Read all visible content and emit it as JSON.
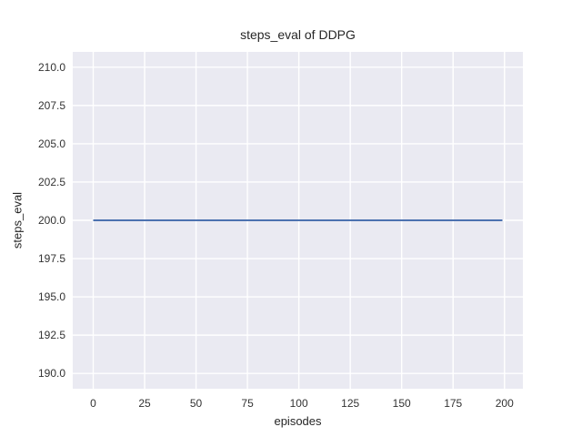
{
  "chart_data": {
    "type": "line",
    "title": "steps_eval of DDPG",
    "xlabel": "episodes",
    "ylabel": "steps_eval",
    "xlim": [
      -9.95,
      208.95
    ],
    "ylim": [
      189.0,
      211.0
    ],
    "xticks": [
      0,
      25,
      50,
      75,
      100,
      125,
      150,
      175,
      200
    ],
    "xtick_labels": [
      "0",
      "25",
      "50",
      "75",
      "100",
      "125",
      "150",
      "175",
      "200"
    ],
    "yticks": [
      190.0,
      192.5,
      195.0,
      197.5,
      200.0,
      202.5,
      205.0,
      207.5,
      210.0
    ],
    "ytick_labels": [
      "190.0",
      "192.5",
      "195.0",
      "197.5",
      "200.0",
      "202.5",
      "205.0",
      "207.5",
      "210.0"
    ],
    "grid": true,
    "legend_position": "none",
    "series": [
      {
        "name": "steps_eval",
        "color": "#4c72b0",
        "x": [
          0,
          199
        ],
        "y": [
          200,
          200
        ]
      }
    ],
    "colors": {
      "figure_bg": "#ffffff",
      "plot_bg": "#eaeaf2",
      "grid": "#ffffff",
      "line": "#4c72b0",
      "tick_text": "#333333",
      "label_text": "#262626"
    }
  }
}
